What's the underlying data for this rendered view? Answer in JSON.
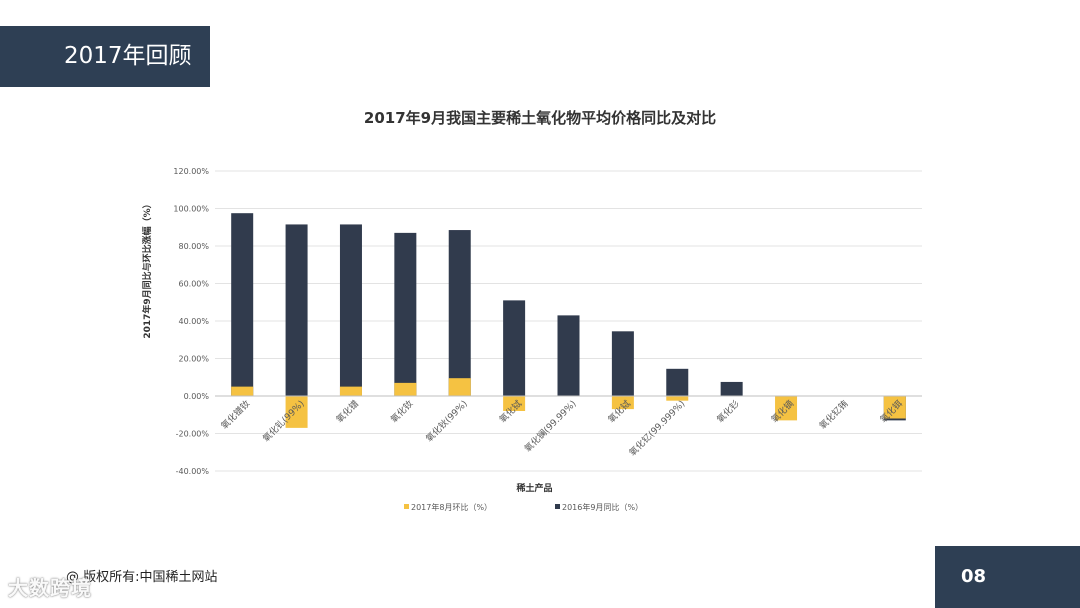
{
  "header": {
    "title": "2017年回顾"
  },
  "footer": {
    "copyright": "@ 版权所有:中国稀土网站",
    "watermark": "大数跨境",
    "page_number": "08"
  },
  "colors": {
    "navy": "#2e3f54",
    "series_mom": "#f5c242",
    "series_yoy": "#313b4d",
    "grid": "#e3e3e3"
  },
  "chart_data": {
    "type": "bar",
    "title": "2017年9月我国主要稀土氧化物平均价格同比及对比",
    "xlabel": "稀土产品",
    "ylabel": "2017年9月同比与环比涨幅（%）",
    "ylim": [
      -40,
      120
    ],
    "ytick_labels": [
      "120.00%",
      "100.00%",
      "80.00%",
      "60.00%",
      "40.00%",
      "20.00%",
      "0.00%",
      "-20.00%",
      "-40.00%"
    ],
    "ytick_values": [
      120,
      100,
      80,
      60,
      40,
      20,
      0,
      -20,
      -40
    ],
    "categories": [
      "氧化镨钕",
      "氧化钆(99%)",
      "氧化镨",
      "氧化钕",
      "氧化钬(99%)",
      "氧化铽",
      "氧化镧(99.99%)",
      "氧化铽",
      "氧化钇(99.999%)",
      "氧化钐",
      "氧化镝",
      "氧化钇铕",
      "氧化铒"
    ],
    "legend_position": "bottom",
    "series": [
      {
        "name": "2017年8月环比（%）",
        "values": [
          5,
          -17,
          5,
          7,
          9.5,
          -8,
          0,
          -7,
          -2.5,
          0,
          -13,
          0,
          -12
        ]
      },
      {
        "name": "2016年9月同比（%）",
        "values": [
          97.5,
          91.5,
          91.5,
          87,
          88.5,
          51,
          43,
          34.5,
          14.5,
          7.5,
          0,
          0,
          -13
        ]
      }
    ]
  }
}
